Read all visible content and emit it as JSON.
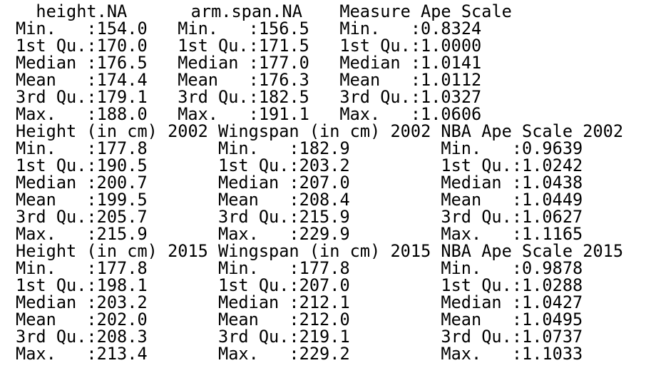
{
  "blocks": [
    {
      "columns": [
        {
          "header": "height.NA",
          "rows": [
            "Min.   :154.0",
            "1st Qu.:170.0",
            "Median :176.5",
            "Mean   :174.4",
            "3rd Qu.:179.1",
            "Max.   :188.0"
          ]
        },
        {
          "header": "arm.span.NA",
          "rows": [
            "Min.   :156.5",
            "1st Qu.:171.5",
            "Median :177.0",
            "Mean   :176.3",
            "3rd Qu.:182.5",
            "Max.   :191.1"
          ]
        },
        {
          "header": "Measure Ape Scale",
          "rows": [
            "Min.   :0.8324",
            "1st Qu.:1.0000",
            "Median :1.0141",
            "Mean   :1.0112",
            "3rd Qu.:1.0327",
            "Max.   :1.0606"
          ]
        }
      ]
    },
    {
      "columns": [
        {
          "header": "Height (in cm) 2002",
          "rows": [
            "Min.   :177.8",
            "1st Qu.:190.5",
            "Median :200.7",
            "Mean   :199.5",
            "3rd Qu.:205.7",
            "Max.   :215.9"
          ]
        },
        {
          "header": "Wingspan (in cm) 2002",
          "rows": [
            "Min.   :182.9",
            "1st Qu.:203.2",
            "Median :207.0",
            "Mean   :208.4",
            "3rd Qu.:215.9",
            "Max.   :229.9"
          ]
        },
        {
          "header": "NBA Ape Scale 2002",
          "rows": [
            "Min.   :0.9639",
            "1st Qu.:1.0242",
            "Median :1.0438",
            "Mean   :1.0449",
            "3rd Qu.:1.0627",
            "Max.   :1.1165"
          ]
        }
      ]
    },
    {
      "columns": [
        {
          "header": "Height (in cm) 2015",
          "rows": [
            "Min.   :177.8",
            "1st Qu.:198.1",
            "Median :203.2",
            "Mean   :202.0",
            "3rd Qu.:208.3",
            "Max.   :213.4"
          ]
        },
        {
          "header": "Wingspan (in cm) 2015",
          "rows": [
            "Min.   :177.8",
            "1st Qu.:207.0",
            "Median :212.1",
            "Mean   :212.0",
            "3rd Qu.:219.1",
            "Max.   :229.2"
          ]
        },
        {
          "header": "NBA Ape Scale 2015",
          "rows": [
            "Min.   :0.9878",
            "1st Qu.:1.0288",
            "Median :1.0427",
            "Mean   :1.0495",
            "3rd Qu.:1.0737",
            "Max.   :1.1033"
          ]
        }
      ]
    }
  ]
}
